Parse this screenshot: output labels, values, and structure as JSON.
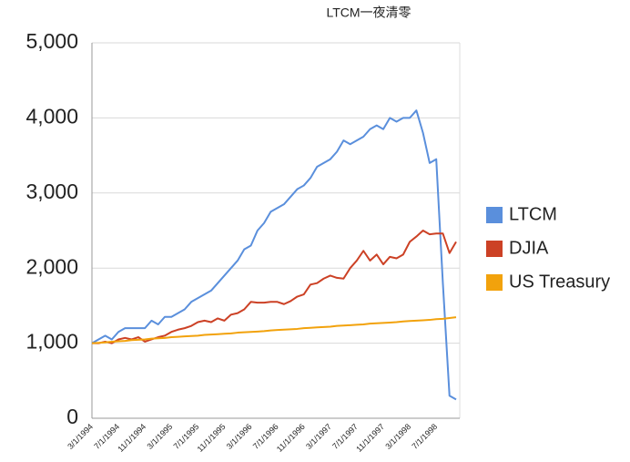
{
  "chart_data": {
    "type": "line",
    "title": "LTCM一夜清零",
    "categories": [
      "3/1/1994",
      null,
      null,
      null,
      "7/1/1994",
      null,
      null,
      null,
      "11/1/1994",
      null,
      null,
      null,
      "3/1/1995",
      null,
      null,
      null,
      "7/1/1995",
      null,
      null,
      null,
      "11/1/1995",
      null,
      null,
      null,
      "3/1/1996",
      null,
      null,
      null,
      "7/1/1996",
      null,
      null,
      null,
      "11/1/1996",
      null,
      null,
      null,
      "3/1/1997",
      null,
      null,
      null,
      "7/1/1997",
      null,
      null,
      null,
      "11/1/1997",
      null,
      null,
      null,
      "3/1/1998",
      null,
      null,
      null,
      "7/1/1998",
      null,
      null,
      null
    ],
    "series": [
      {
        "name": "LTCM",
        "color": "#5a8fdc",
        "values": [
          1000,
          1050,
          1100,
          1050,
          1150,
          1200,
          1200,
          1200,
          1200,
          1300,
          1250,
          1350,
          1350,
          1400,
          1450,
          1550,
          1600,
          1650,
          1700,
          1800,
          1900,
          2000,
          2100,
          2250,
          2300,
          2500,
          2600,
          2750,
          2800,
          2850,
          2950,
          3050,
          3100,
          3200,
          3350,
          3400,
          3450,
          3550,
          3700,
          3650,
          3700,
          3750,
          3850,
          3900,
          3850,
          4000,
          3950,
          4000,
          4000,
          4100,
          3800,
          3400,
          3450,
          1800,
          300,
          250
        ]
      },
      {
        "name": "DJIA",
        "color": "#cc4125",
        "values": [
          1000,
          1000,
          1020,
          1000,
          1050,
          1070,
          1050,
          1080,
          1020,
          1050,
          1080,
          1100,
          1150,
          1180,
          1200,
          1230,
          1280,
          1300,
          1280,
          1330,
          1300,
          1380,
          1400,
          1450,
          1550,
          1540,
          1540,
          1550,
          1550,
          1520,
          1560,
          1620,
          1650,
          1780,
          1800,
          1860,
          1900,
          1870,
          1860,
          2000,
          2100,
          2230,
          2100,
          2180,
          2050,
          2150,
          2130,
          2180,
          2350,
          2420,
          2500,
          2450,
          2460,
          2460,
          2200,
          2350
        ]
      },
      {
        "name": "US Treasury",
        "color": "#f2a20c",
        "values": [
          1000,
          1005,
          1010,
          1020,
          1025,
          1030,
          1040,
          1045,
          1050,
          1060,
          1065,
          1070,
          1080,
          1085,
          1090,
          1095,
          1100,
          1110,
          1115,
          1120,
          1125,
          1130,
          1140,
          1145,
          1150,
          1155,
          1160,
          1170,
          1175,
          1180,
          1185,
          1190,
          1200,
          1205,
          1210,
          1215,
          1220,
          1230,
          1235,
          1240,
          1245,
          1250,
          1260,
          1265,
          1270,
          1275,
          1280,
          1290,
          1295,
          1300,
          1305,
          1310,
          1320,
          1325,
          1335,
          1345
        ]
      }
    ],
    "ylim": [
      0,
      5000
    ],
    "yticks": [
      0,
      {
        "value": 1000,
        "label": "1,000"
      },
      {
        "value": 2000,
        "label": "2,000"
      },
      {
        "value": 3000,
        "label": "3,000"
      },
      {
        "value": 4000,
        "label": "4,000"
      },
      {
        "value": 5000,
        "label": "5,000"
      }
    ],
    "grid": true,
    "legend": "right"
  }
}
